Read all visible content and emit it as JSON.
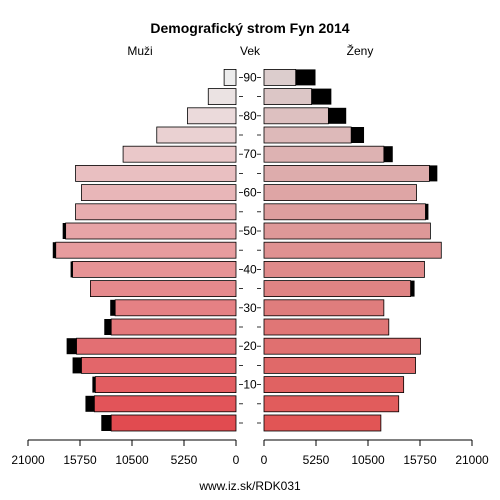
{
  "chart_data": {
    "type": "bar",
    "title": "Demografický strom Fyn 2014",
    "left_label": "Muži",
    "center_label": "Vek",
    "right_label": "Ženy",
    "footer": "www.iz.sk/RDK031",
    "x_ticks_left": [
      "21000",
      "15750",
      "10500",
      "5250",
      "0"
    ],
    "x_ticks_right": [
      "0",
      "5250",
      "10500",
      "15750",
      "21000"
    ],
    "age_ticks": [
      "10",
      "20",
      "30",
      "40",
      "50",
      "60",
      "70",
      "80",
      "90"
    ],
    "xlim": [
      0,
      21000
    ],
    "series": [
      {
        "name": "Muži",
        "age_groups": [
          "0-4",
          "5-9",
          "10-14",
          "15-19",
          "20-24",
          "25-29",
          "30-34",
          "35-39",
          "40-44",
          "45-49",
          "50-54",
          "55-59",
          "60-64",
          "65-69",
          "70-74",
          "75-79",
          "80-84",
          "85-89",
          "90+"
        ],
        "values": [
          12600,
          14300,
          14200,
          15600,
          16100,
          12600,
          12200,
          14700,
          16500,
          18200,
          17200,
          16200,
          15600,
          16200,
          11400,
          8000,
          4900,
          2800,
          1200
        ],
        "surplus": [
          1000,
          900,
          300,
          900,
          1000,
          700,
          500,
          0,
          200,
          300,
          300,
          0,
          0,
          0,
          0,
          0,
          0,
          0,
          0
        ]
      },
      {
        "name": "Ženy",
        "age_groups": [
          "0-4",
          "5-9",
          "10-14",
          "15-19",
          "20-24",
          "25-29",
          "30-34",
          "35-39",
          "40-44",
          "45-49",
          "50-54",
          "55-59",
          "60-64",
          "65-69",
          "70-74",
          "75-79",
          "80-84",
          "85-89",
          "90+"
        ],
        "values": [
          11800,
          13600,
          14100,
          15300,
          15800,
          12600,
          12100,
          14800,
          16200,
          17900,
          16800,
          16300,
          15400,
          16700,
          12100,
          8800,
          6500,
          4800,
          3200
        ],
        "surplus": [
          0,
          0,
          0,
          0,
          0,
          0,
          0,
          400,
          0,
          0,
          0,
          300,
          0,
          800,
          900,
          1300,
          1800,
          2000,
          2000
        ]
      }
    ]
  }
}
